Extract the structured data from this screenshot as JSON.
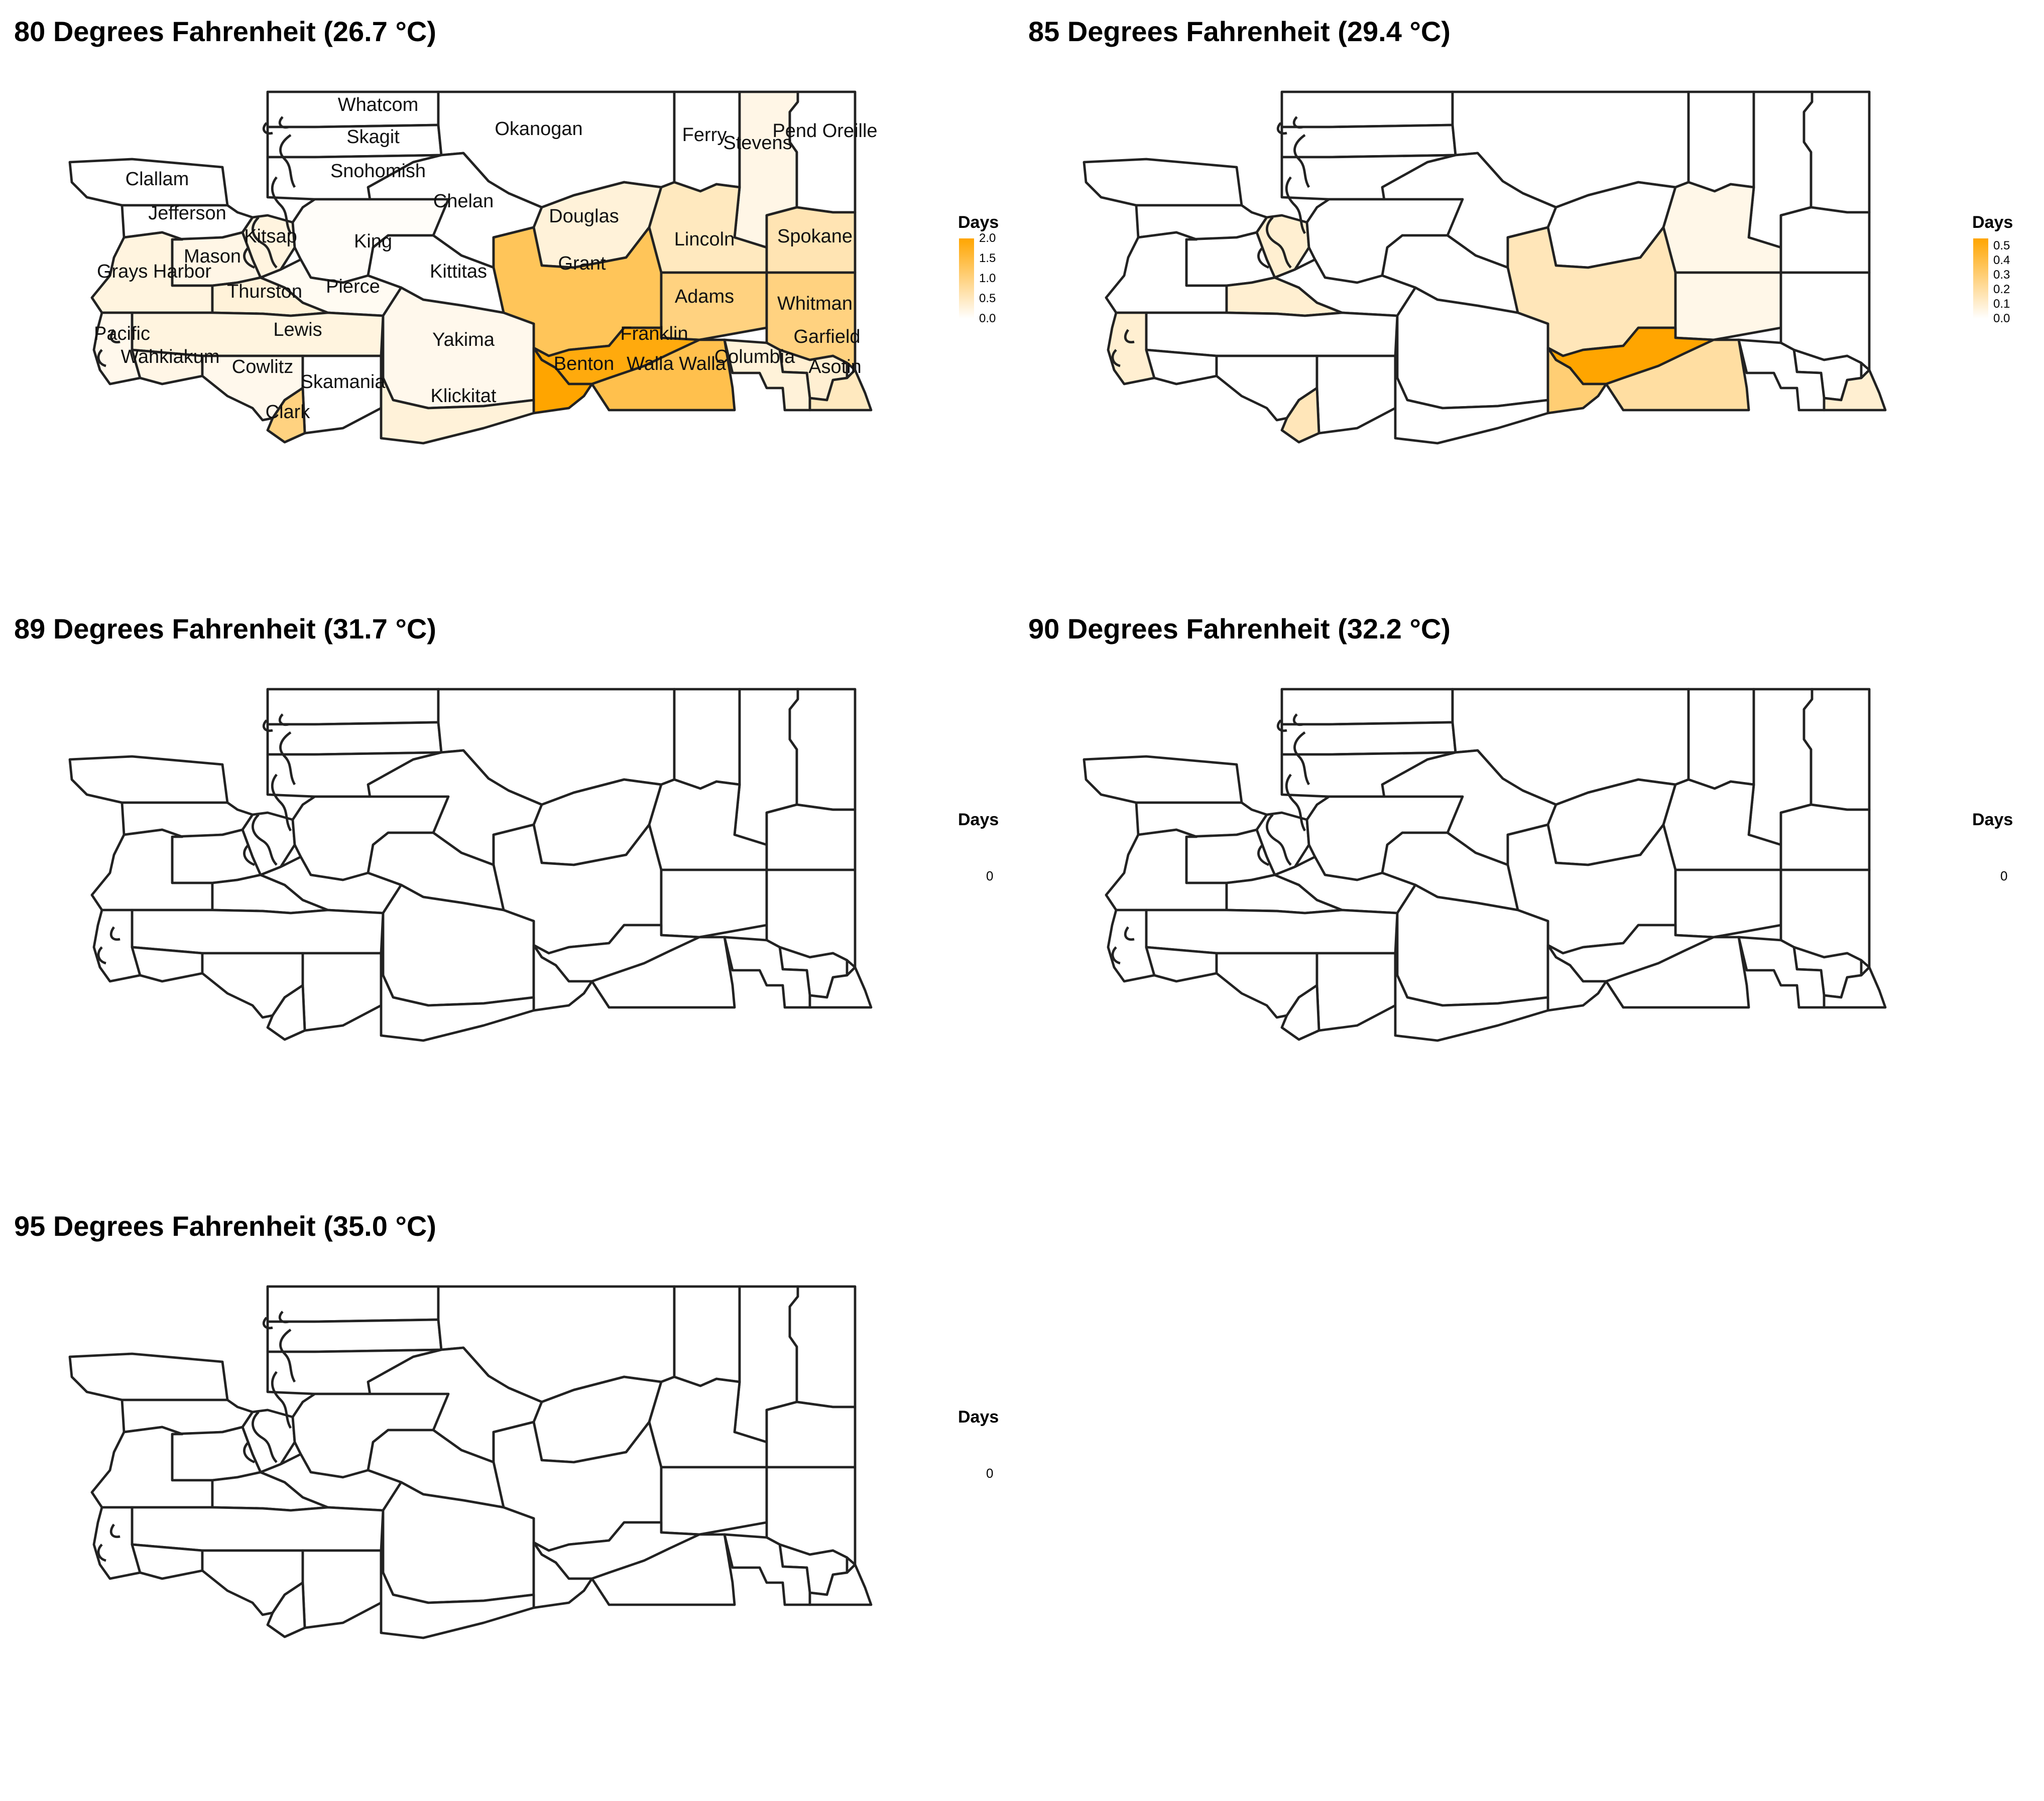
{
  "legend_title": "Days",
  "colors": {
    "low": "#ffffff",
    "high": "#ffa500",
    "stroke": "#222222"
  },
  "counties": [
    "Whatcom",
    "Skagit",
    "Snohomish",
    "Okanogan",
    "Ferry",
    "Stevens",
    "Pend Oreille",
    "Clallam",
    "Jefferson",
    "Chelan",
    "Douglas",
    "Kitsap",
    "King",
    "Mason",
    "Grays Harbor",
    "Lincoln",
    "Spokane",
    "Grant",
    "Kittitas",
    "Thurston",
    "Pierce",
    "Adams",
    "Whitman",
    "Lewis",
    "Pacific",
    "Franklin",
    "Yakima",
    "Garfield",
    "Wahkiakum",
    "Cowlitz",
    "Benton",
    "Walla Walla",
    "Columbia",
    "Asotin",
    "Skamania",
    "Klickitat",
    "Clark"
  ],
  "panels": [
    {
      "title": "80 Degrees Fahrenheit (26.7 °C)",
      "show_labels": true,
      "scale_max": 2.0,
      "scale_ticks": [
        "2.0",
        "1.5",
        "1.0",
        "0.5",
        "0.0"
      ],
      "zero_label": "",
      "values": {
        "Whatcom": 0,
        "Skagit": 0,
        "Snohomish": 0,
        "Okanogan": 0,
        "Ferry": 0,
        "Stevens": 0.2,
        "Pend Oreille": 0,
        "Clallam": 0,
        "Jefferson": 0,
        "Chelan": 0,
        "Douglas": 0.3,
        "Kitsap": 0.25,
        "King": 0.05,
        "Mason": 0.2,
        "Grays Harbor": 0.25,
        "Lincoln": 0.5,
        "Spokane": 0.6,
        "Grant": 1.3,
        "Kittitas": 0,
        "Thurston": 0.3,
        "Pierce": 0.1,
        "Adams": 1.0,
        "Whitman": 1.0,
        "Lewis": 0.25,
        "Pacific": 0.15,
        "Franklin": 1.9,
        "Yakima": 0.15,
        "Garfield": 0.35,
        "Wahkiakum": 0.2,
        "Cowlitz": 0.15,
        "Benton": 2.0,
        "Walla Walla": 1.4,
        "Columbia": 0.3,
        "Asotin": 0.5,
        "Skamania": 0,
        "Klickitat": 0.3,
        "Clark": 1.0
      }
    },
    {
      "title": "85 Degrees Fahrenheit (29.4 °C)",
      "show_labels": false,
      "scale_max": 0.55,
      "scale_ticks": [
        "0.5",
        "0.4",
        "0.3",
        "0.2",
        "0.1",
        "0.0"
      ],
      "zero_label": "",
      "values": {
        "Whatcom": 0,
        "Skagit": 0,
        "Snohomish": 0,
        "Okanogan": 0,
        "Ferry": 0,
        "Stevens": 0,
        "Pend Oreille": 0,
        "Clallam": 0,
        "Jefferson": 0,
        "Chelan": 0,
        "Douglas": 0,
        "Kitsap": 0.1,
        "King": 0,
        "Mason": 0,
        "Grays Harbor": 0,
        "Lincoln": 0.05,
        "Spokane": 0,
        "Grant": 0.15,
        "Kittitas": 0,
        "Thurston": 0.1,
        "Pierce": 0,
        "Adams": 0.05,
        "Whitman": 0,
        "Lewis": 0,
        "Pacific": 0.1,
        "Franklin": 0.55,
        "Yakima": 0,
        "Garfield": 0,
        "Wahkiakum": 0,
        "Cowlitz": 0,
        "Benton": 0.3,
        "Walla Walla": 0.2,
        "Columbia": 0,
        "Asotin": 0.1,
        "Skamania": 0,
        "Klickitat": 0,
        "Clark": 0.15
      }
    },
    {
      "title": "89 Degrees Fahrenheit (31.7 °C)",
      "show_labels": false,
      "scale_max": 0,
      "scale_ticks": [],
      "zero_label": "0",
      "values": {}
    },
    {
      "title": "90 Degrees Fahrenheit (32.2 °C)",
      "show_labels": false,
      "scale_max": 0,
      "scale_ticks": [],
      "zero_label": "0",
      "values": {}
    },
    {
      "title": "95 Degrees Fahrenheit (35.0 °C)",
      "show_labels": false,
      "scale_max": 0,
      "scale_ticks": [],
      "zero_label": "0",
      "values": {}
    }
  ]
}
